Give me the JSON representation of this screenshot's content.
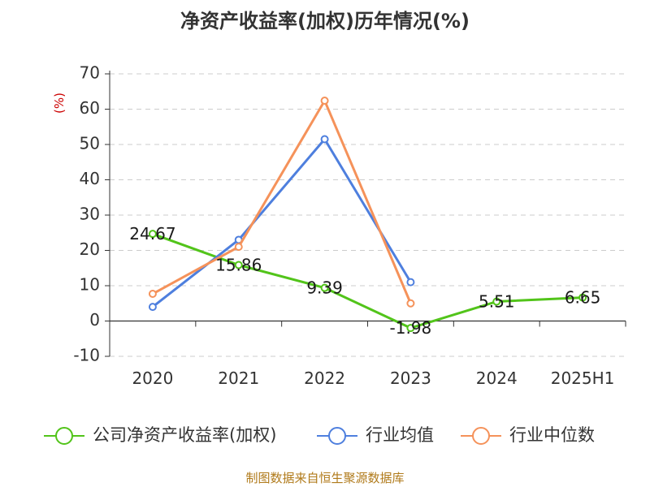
{
  "chart_data": {
    "type": "line",
    "title": "净资产收益率(加权)历年情况(%)",
    "ylabel": "(%)",
    "xlabel": "",
    "categories": [
      "2020",
      "2021",
      "2022",
      "2023",
      "2024",
      "2025H1"
    ],
    "y_ticks": [
      "70",
      "60",
      "50",
      "40",
      "30",
      "20",
      "10",
      "0",
      "-10"
    ],
    "ylim": [
      -10,
      70
    ],
    "grid": true,
    "legend_position": "bottom",
    "series": [
      {
        "name": "公司净资产收益率(加权)",
        "color": "#52c41a",
        "values": [
          24.67,
          15.86,
          9.39,
          -1.98,
          5.51,
          6.65
        ],
        "labels": [
          "24.67",
          "15.86",
          "9.39",
          "-1.98",
          "5.51",
          "6.65"
        ]
      },
      {
        "name": "行业均值",
        "color": "#4e7fde",
        "values": [
          4.0,
          23.0,
          51.5,
          11.0,
          null,
          null
        ]
      },
      {
        "name": "行业中位数",
        "color": "#f5925a",
        "values": [
          7.7,
          21.0,
          62.4,
          5.0,
          null,
          null
        ]
      }
    ],
    "ylabel_color": "#cc0000"
  },
  "footer": {
    "source": "制图数据来自恒生聚源数据库"
  }
}
